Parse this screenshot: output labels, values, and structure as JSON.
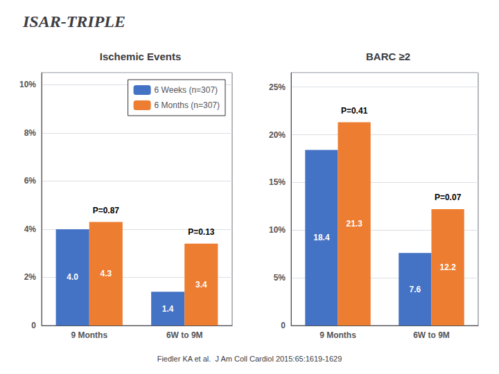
{
  "title": "ISAR-TRIPLE",
  "footer": "Fiedler KA et al.  J Am Coll Cardiol 2015:65:1619-1629",
  "chart_data": [
    {
      "type": "bar",
      "title": "Ischemic Events",
      "categories": [
        "9 Months",
        "6W to 9M"
      ],
      "series": [
        {
          "name": "6 Weeks (n=307)",
          "color": "#4472c4",
          "values": [
            4.0,
            1.4
          ],
          "value_labels": [
            "4.0",
            "1.4"
          ]
        },
        {
          "name": "6 Months (n=307)",
          "color": "#ed7d31",
          "values": [
            4.3,
            3.4
          ],
          "value_labels": [
            "4.3",
            "3.4"
          ]
        }
      ],
      "ylim": [
        0,
        10.5
      ],
      "yticks": [
        0,
        {
          "value": 2,
          "label": "2%"
        },
        {
          "value": 4,
          "label": "4%"
        },
        {
          "value": 6,
          "label": "6%"
        },
        {
          "value": 8,
          "label": "8%"
        },
        {
          "value": 10,
          "label": "10%"
        }
      ],
      "grid": true,
      "legend": "upper right",
      "data_labels": true,
      "annotations": [
        {
          "text": "P=0.87",
          "category": "9 Months"
        },
        {
          "text": "P=0.13",
          "category": "6W to 9M"
        }
      ]
    },
    {
      "type": "bar",
      "title": "BARC ≥2",
      "categories": [
        "9 Months",
        "6W to 9M"
      ],
      "series": [
        {
          "name": "6 Weeks (n=307)",
          "color": "#4472c4",
          "values": [
            18.4,
            7.6
          ],
          "value_labels": [
            "18.4",
            "7.6"
          ]
        },
        {
          "name": "6 Months (n=307)",
          "color": "#ed7d31",
          "values": [
            21.3,
            12.2
          ],
          "value_labels": [
            "21.3",
            "12.2"
          ]
        }
      ],
      "ylim": [
        0,
        26.5
      ],
      "yticks": [
        0,
        {
          "value": 5,
          "label": "5%"
        },
        {
          "value": 10,
          "label": "10%"
        },
        {
          "value": 15,
          "label": "15%"
        },
        {
          "value": 20,
          "label": "20%"
        },
        {
          "value": 25,
          "label": "25%"
        }
      ],
      "grid": true,
      "data_labels": true,
      "annotations": [
        {
          "text": "P=0.41",
          "category": "9 Months"
        },
        {
          "text": "P=0.07",
          "category": "6W to 9M"
        }
      ]
    }
  ]
}
